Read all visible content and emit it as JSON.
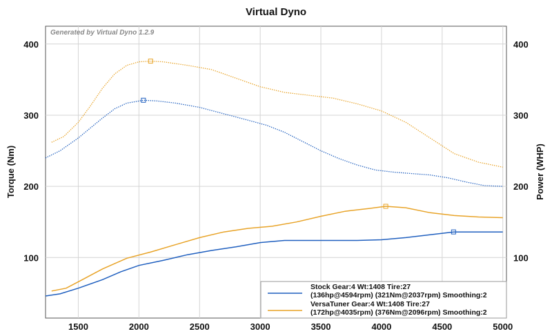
{
  "chart_data": {
    "type": "line",
    "title": "Virtual Dyno",
    "watermark": "Generated by Virtual Dyno 1.2.9",
    "ylabel": "Torque (Nm)",
    "y2label": "Power (WHP)",
    "xlim": [
      1230,
      5030
    ],
    "ylim": [
      15,
      425
    ],
    "x_ticks": [
      1500,
      2000,
      2500,
      3000,
      3500,
      4000,
      4500,
      5000
    ],
    "y_ticks": [
      100,
      200,
      300,
      400
    ],
    "grid": true,
    "legend_position": "bottom-right",
    "series": [
      {
        "name": "Stock Gear:4 Wt:1408 Tire:27 (136hp@4594rpm) (321Nm@2037rpm) Smoothing:2",
        "color": "#1f5fbf",
        "torque": [
          [
            1230,
            240
          ],
          [
            1350,
            250
          ],
          [
            1500,
            268
          ],
          [
            1600,
            282
          ],
          [
            1700,
            296
          ],
          [
            1800,
            309
          ],
          [
            1900,
            317
          ],
          [
            2037,
            321
          ],
          [
            2150,
            320
          ],
          [
            2300,
            317
          ],
          [
            2500,
            311
          ],
          [
            2700,
            302
          ],
          [
            2900,
            293
          ],
          [
            3050,
            286
          ],
          [
            3200,
            276
          ],
          [
            3350,
            263
          ],
          [
            3500,
            250
          ],
          [
            3650,
            239
          ],
          [
            3800,
            230
          ],
          [
            3950,
            223
          ],
          [
            4100,
            220
          ],
          [
            4250,
            218
          ],
          [
            4400,
            216
          ],
          [
            4550,
            212
          ],
          [
            4700,
            206
          ],
          [
            4850,
            201
          ],
          [
            5000,
            200
          ]
        ],
        "power": [
          [
            1230,
            46
          ],
          [
            1350,
            49
          ],
          [
            1500,
            57
          ],
          [
            1700,
            69
          ],
          [
            1850,
            80
          ],
          [
            2000,
            89
          ],
          [
            2200,
            96
          ],
          [
            2400,
            104
          ],
          [
            2600,
            110
          ],
          [
            2800,
            115
          ],
          [
            3000,
            121
          ],
          [
            3200,
            124
          ],
          [
            3400,
            124
          ],
          [
            3600,
            124
          ],
          [
            3800,
            124
          ],
          [
            4000,
            125
          ],
          [
            4200,
            128
          ],
          [
            4400,
            132
          ],
          [
            4594,
            136
          ],
          [
            4800,
            136
          ],
          [
            5000,
            136
          ]
        ],
        "markers": [
          [
            2037,
            321,
            "torque"
          ],
          [
            4594,
            136,
            "power"
          ]
        ]
      },
      {
        "name": "VersaTuner Gear:4 Wt:1408 Tire:27 (172hp@4035rpm) (376Nm@2096rpm) Smoothing:2",
        "color": "#e8a327",
        "torque": [
          [
            1280,
            262
          ],
          [
            1380,
            270
          ],
          [
            1500,
            290
          ],
          [
            1600,
            313
          ],
          [
            1700,
            338
          ],
          [
            1800,
            358
          ],
          [
            1900,
            370
          ],
          [
            2000,
            375
          ],
          [
            2096,
            376
          ],
          [
            2200,
            375
          ],
          [
            2400,
            370
          ],
          [
            2600,
            364
          ],
          [
            2800,
            352
          ],
          [
            3000,
            340
          ],
          [
            3200,
            332
          ],
          [
            3400,
            328
          ],
          [
            3600,
            324
          ],
          [
            3800,
            316
          ],
          [
            4000,
            306
          ],
          [
            4200,
            290
          ],
          [
            4400,
            268
          ],
          [
            4600,
            246
          ],
          [
            4800,
            234
          ],
          [
            5000,
            227
          ]
        ],
        "power": [
          [
            1280,
            53
          ],
          [
            1400,
            57
          ],
          [
            1500,
            66
          ],
          [
            1700,
            84
          ],
          [
            1900,
            99
          ],
          [
            2100,
            108
          ],
          [
            2300,
            118
          ],
          [
            2500,
            128
          ],
          [
            2700,
            136
          ],
          [
            2900,
            141
          ],
          [
            3100,
            144
          ],
          [
            3300,
            150
          ],
          [
            3500,
            158
          ],
          [
            3700,
            165
          ],
          [
            3900,
            169
          ],
          [
            4035,
            172
          ],
          [
            4200,
            170
          ],
          [
            4400,
            163
          ],
          [
            4600,
            159
          ],
          [
            4800,
            157
          ],
          [
            5000,
            156
          ]
        ],
        "markers": [
          [
            2096,
            376,
            "torque"
          ],
          [
            4035,
            172,
            "power"
          ]
        ]
      }
    ]
  }
}
